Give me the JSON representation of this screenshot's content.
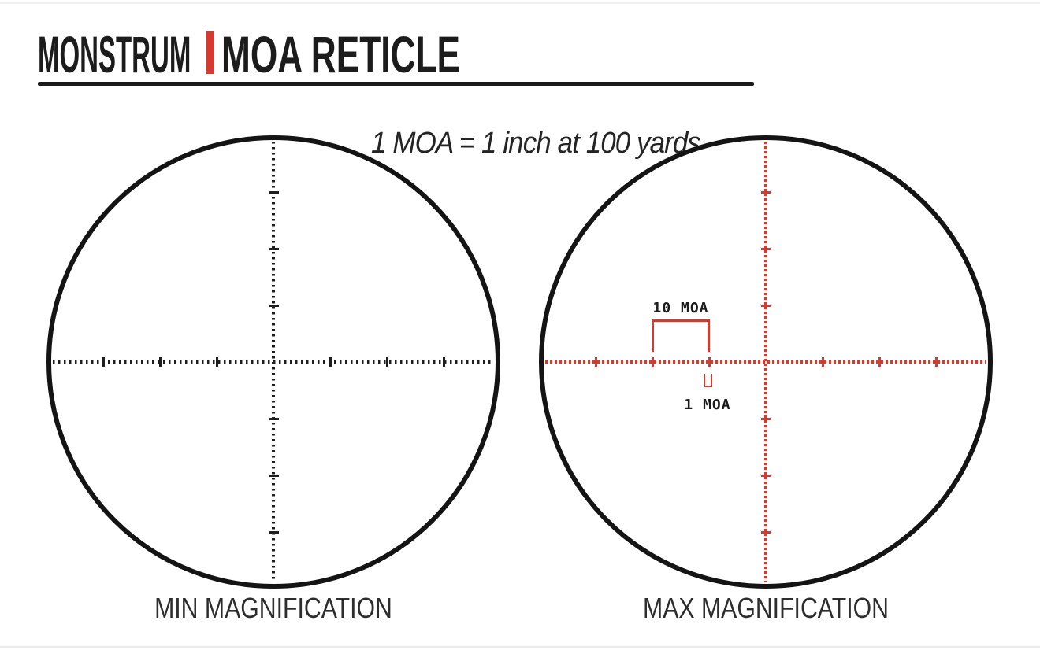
{
  "header": {
    "brand": "MONSTRUM",
    "title": "MOA RETICLE"
  },
  "subtitle": "1 MOA = 1 inch at 100 yards",
  "scopes": {
    "min": {
      "label": "MIN MAGNIFICATION"
    },
    "max": {
      "label": "MAX MAGNIFICATION",
      "annotation_10moa": "10 MOA",
      "annotation_1moa": "1 MOA"
    }
  },
  "colors": {
    "accent_red": "#d53a2e",
    "reticle_red": "#d53a2e",
    "reticle_black": "#1e1e1e",
    "ink": "#1c1c1c"
  }
}
